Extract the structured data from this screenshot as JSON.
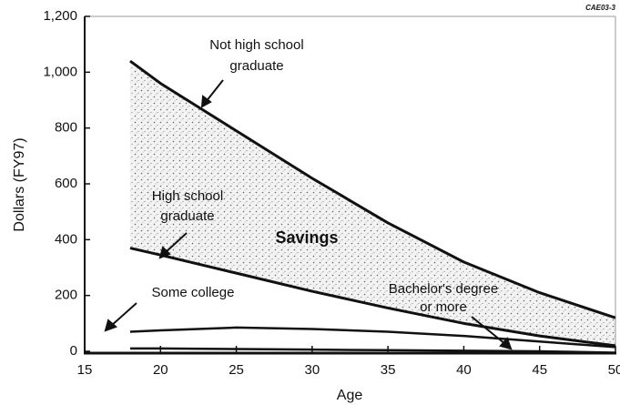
{
  "chart_data": {
    "type": "line",
    "corner_note": "CAE03-3",
    "x_label": "Age",
    "y_label": "Dollars (FY97)",
    "x": [
      18,
      20,
      25,
      30,
      35,
      40,
      45,
      50
    ],
    "series": [
      {
        "name": "Not high school graduate",
        "color": "#111111",
        "values": [
          1040,
          960,
          790,
          620,
          460,
          320,
          210,
          120
        ]
      },
      {
        "name": "High school graduate",
        "color": "#111111",
        "values": [
          370,
          345,
          280,
          215,
          155,
          100,
          55,
          20
        ]
      },
      {
        "name": "Some college",
        "color": "#111111",
        "values": [
          70,
          75,
          85,
          80,
          70,
          55,
          35,
          15
        ]
      },
      {
        "name": "Bachelor's degree or more",
        "color": "#111111",
        "values": [
          10,
          10,
          8,
          6,
          4,
          2,
          0,
          -5
        ]
      }
    ],
    "annotations": [
      {
        "lines": [
          "Not high school",
          "graduate"
        ]
      },
      {
        "lines": [
          "High school",
          "graduate"
        ]
      },
      {
        "lines": [
          "Some college"
        ]
      },
      {
        "lines": [
          "Bachelor's degree",
          "or more"
        ]
      },
      {
        "lines": [
          "Savings"
        ]
      }
    ],
    "xlim": [
      15,
      50
    ],
    "xticks": [
      15,
      20,
      25,
      30,
      35,
      40,
      45,
      50
    ],
    "ylim": [
      0,
      1200
    ],
    "yticks": [
      0,
      200,
      400,
      600,
      800,
      {
        "value": 1000,
        "label": "1,000"
      },
      {
        "value": 1200,
        "label": "1,200"
      }
    ],
    "shaded_between": [
      0,
      1
    ]
  }
}
